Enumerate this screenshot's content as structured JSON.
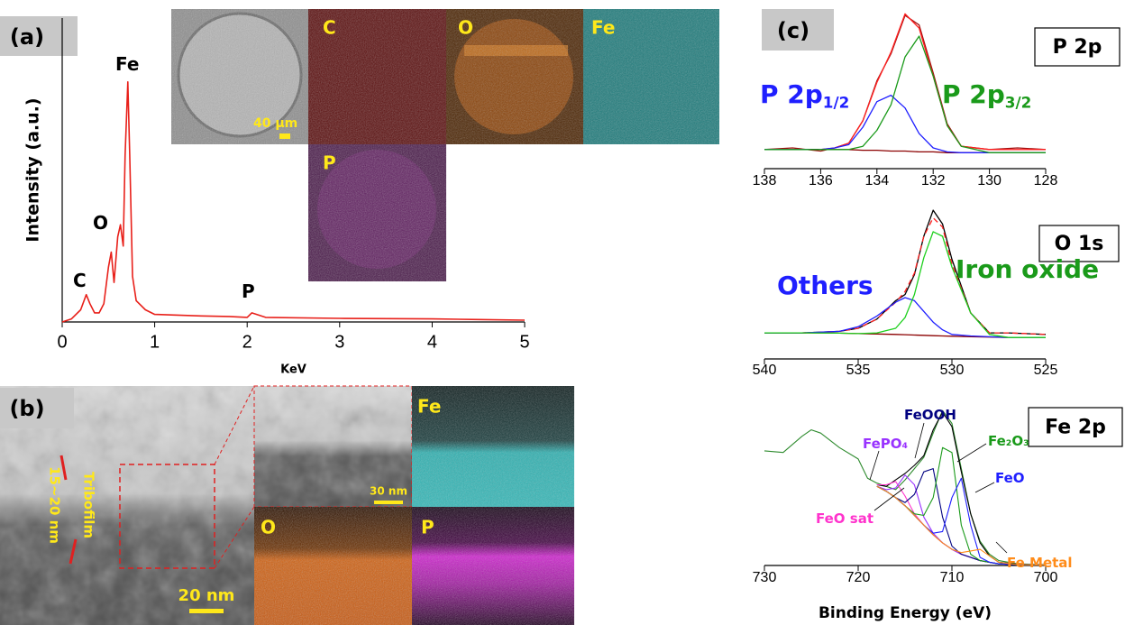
{
  "chart_data": [
    {
      "type": "line",
      "xlabel": "KeV",
      "ylabel": "Intensity (a.u.)",
      "x": [
        0,
        0.1,
        0.2,
        0.26,
        0.3,
        0.35,
        0.4,
        0.45,
        0.5,
        0.53,
        0.56,
        0.6,
        0.63,
        0.66,
        0.68,
        0.71,
        0.73,
        0.76,
        0.8,
        0.9,
        1.0,
        1.5,
        1.8,
        2.0,
        2.05,
        2.2,
        3,
        4,
        4.5,
        5
      ],
      "series": [
        {
          "color": "#e8201a",
          "values": [
            0,
            1,
            4,
            9,
            6,
            3,
            3,
            6,
            18,
            23,
            13,
            28,
            32,
            25,
            55,
            79,
            55,
            15,
            7,
            4,
            2.5,
            2,
            1.8,
            1.5,
            3,
            1.5,
            1.2,
            1,
            0.8,
            0.6
          ]
        }
      ],
      "xlim": [
        0,
        5
      ],
      "ylim": [
        0,
        100
      ],
      "xticks": [
        0,
        1,
        2,
        3,
        4,
        5
      ],
      "annotations": [
        {
          "text": "Fe",
          "color": "#000000"
        },
        {
          "text": "O",
          "color": "#000000"
        },
        {
          "text": "C",
          "color": "#000000"
        },
        {
          "text": "P",
          "color": "#000000"
        }
      ]
    },
    {
      "type": "line",
      "title": "P 2p",
      "x": [
        138,
        137,
        136,
        135.5,
        135,
        134.5,
        134,
        133.5,
        133,
        132.5,
        132,
        131.5,
        131,
        130,
        129,
        128
      ],
      "series": [
        {
          "color": "#a01010",
          "values": [
            12,
            13,
            11,
            13,
            16,
            30,
            55,
            72,
            96,
            90,
            60,
            28,
            14,
            12,
            13,
            12
          ]
        },
        {
          "color": "#ff2020",
          "values": [
            12,
            12,
            12,
            13,
            16,
            30,
            54,
            73,
            97,
            88,
            58,
            27,
            14,
            12,
            12,
            12
          ]
        },
        {
          "color": "#8b0000",
          "values": [
            12,
            12,
            12,
            12,
            12,
            11.5,
            11.5,
            11,
            11,
            10.5,
            10.5,
            10,
            10,
            10,
            10,
            10
          ]
        },
        {
          "color": "#1f1fff",
          "values": [
            12,
            12,
            12,
            13,
            15,
            26,
            42,
            46,
            38,
            22,
            13,
            10.5,
            10,
            10,
            10,
            10
          ]
        },
        {
          "color": "#1a9a1a",
          "values": [
            12,
            12,
            12,
            12,
            12,
            14,
            24,
            40,
            70,
            83,
            58,
            27,
            14,
            10,
            10,
            10
          ]
        }
      ],
      "xlim": [
        138,
        128
      ],
      "ylim": [
        0,
        100
      ],
      "xticks": [
        138,
        136,
        134,
        132,
        130,
        128
      ],
      "annotations": [
        {
          "text": "P 2p",
          "sub": "1/2",
          "color": "#1f1fff"
        },
        {
          "text": "P 2p",
          "sub": "3/2",
          "color": "#1a9a1a"
        }
      ]
    },
    {
      "type": "line",
      "title": "O 1s",
      "x": [
        540,
        538,
        536,
        535,
        534,
        533,
        532.5,
        532,
        531.5,
        531,
        530.5,
        530,
        529,
        528,
        527,
        525
      ],
      "series": [
        {
          "color": "#000000",
          "values": [
            17,
            17,
            18,
            20,
            26,
            38,
            42,
            55,
            80,
            97,
            88,
            65,
            30,
            17,
            17,
            16
          ]
        },
        {
          "color": "#ff2020",
          "dashed": true,
          "values": [
            17,
            17,
            18,
            20,
            26,
            37,
            44,
            56,
            80,
            92,
            86,
            62,
            30,
            17,
            17,
            16
          ]
        },
        {
          "color": "#8b0000",
          "values": [
            17,
            17,
            16.8,
            16.5,
            16.3,
            16,
            15.8,
            15.6,
            15.4,
            15.2,
            15,
            14.8,
            14.5,
            14.3,
            14,
            14
          ]
        },
        {
          "color": "#1f1fff",
          "values": [
            17,
            17,
            18,
            21,
            28,
            37,
            40,
            38,
            31,
            24,
            19,
            16,
            15,
            14.5,
            14,
            14
          ]
        },
        {
          "color": "#1fd01f",
          "values": [
            17,
            17,
            16.8,
            16.5,
            17,
            20,
            27,
            42,
            66,
            83,
            80,
            60,
            30,
            16,
            14,
            14
          ]
        }
      ],
      "xlim": [
        540,
        525
      ],
      "ylim": [
        0,
        100
      ],
      "xticks": [
        540,
        535,
        530,
        525
      ],
      "annotations": [
        {
          "text": "Others",
          "color": "#1f1fff"
        },
        {
          "text": "Iron oxide",
          "color": "#1a9a1a"
        }
      ]
    },
    {
      "type": "line",
      "title": "Fe 2p",
      "xlabel": "Binding Energy (eV)",
      "x": [
        730,
        728,
        726,
        725,
        724,
        722,
        720,
        719,
        718,
        717,
        716,
        715,
        714,
        713,
        712,
        711,
        710,
        709,
        708,
        707,
        706,
        705,
        703,
        700
      ],
      "series": [
        {
          "color": "#2e8b2e",
          "values": [
            71,
            70,
            80,
            84,
            82,
            73,
            66,
            54,
            51,
            49,
            47,
            53,
            60,
            67,
            82,
            96,
            88,
            60,
            32,
            15,
            7,
            3,
            1,
            0.5
          ]
        },
        {
          "color": "#000000",
          "values": [
            null,
            null,
            null,
            null,
            null,
            null,
            null,
            null,
            50,
            49,
            53,
            57,
            62,
            68,
            84,
            95,
            86,
            58,
            32,
            14,
            6,
            2,
            0.8,
            0.3
          ]
        },
        {
          "color": "#333333",
          "values": [
            null,
            null,
            null,
            null,
            null,
            null,
            null,
            null,
            49,
            46,
            42,
            37,
            31,
            25,
            19,
            14,
            10,
            7,
            5,
            3,
            2,
            1,
            0.5,
            0.3
          ]
        },
        {
          "color": "#ff33cc",
          "values": [
            null,
            null,
            null,
            null,
            null,
            null,
            null,
            null,
            50,
            50,
            52,
            43,
            32,
            25,
            19,
            14,
            10,
            7,
            5,
            3,
            2,
            1,
            0.5,
            0.3
          ]
        },
        {
          "color": "#9933ff",
          "values": [
            null,
            null,
            null,
            null,
            null,
            null,
            null,
            null,
            49,
            47,
            48,
            56,
            50,
            30,
            20,
            14,
            10,
            7,
            5,
            3,
            2,
            1,
            0.5,
            0.3
          ]
        },
        {
          "color": "#000080",
          "values": [
            null,
            null,
            null,
            null,
            null,
            null,
            null,
            null,
            49,
            46,
            42,
            39,
            44,
            58,
            60,
            30,
            12,
            7,
            5,
            3,
            2,
            1,
            0.5,
            0.3
          ]
        },
        {
          "color": "#1a9a1a",
          "values": [
            null,
            null,
            null,
            null,
            null,
            null,
            null,
            null,
            49,
            46,
            42,
            37,
            32,
            31,
            42,
            73,
            70,
            25,
            7,
            3,
            2,
            1,
            0.5,
            0.3
          ]
        },
        {
          "color": "#1f1fff",
          "values": [
            null,
            null,
            null,
            null,
            null,
            null,
            null,
            null,
            49,
            46,
            42,
            37,
            31,
            25,
            20,
            21,
            42,
            54,
            25,
            5,
            2,
            1,
            0.5,
            0.3
          ]
        },
        {
          "color": "#ff8c1a",
          "values": [
            null,
            null,
            null,
            null,
            null,
            null,
            null,
            null,
            49,
            46,
            42,
            37,
            31,
            25,
            19,
            14,
            10,
            8,
            9,
            10,
            6,
            2,
            0.5,
            0.3
          ]
        }
      ],
      "xlim": [
        730,
        700
      ],
      "ylim": [
        0,
        100
      ],
      "xticks": [
        730,
        720,
        710,
        700
      ],
      "annotations": [
        {
          "text": "FeOOH",
          "color": "#000080"
        },
        {
          "text": "FePO₄",
          "color": "#9933ff"
        },
        {
          "text": "Fe₂O₃",
          "color": "#1a9a1a"
        },
        {
          "text": "FeO",
          "color": "#1f1fff"
        },
        {
          "text": "FeO sat",
          "color": "#ff33cc"
        },
        {
          "text": "Fe Metal",
          "color": "#ff8c1a"
        }
      ]
    }
  ],
  "panel_labels": [
    "(a)",
    "(b)",
    "(c)"
  ],
  "maps_a": [
    "C",
    "O",
    "Fe",
    "P"
  ],
  "sem_scale": "40 µm",
  "tem": {
    "film": "Tribofilm",
    "thickness": "15~20 nm",
    "scale": "20 nm",
    "inset_scale": "30 nm"
  },
  "maps_b": [
    "Fe",
    "O",
    "P"
  ]
}
